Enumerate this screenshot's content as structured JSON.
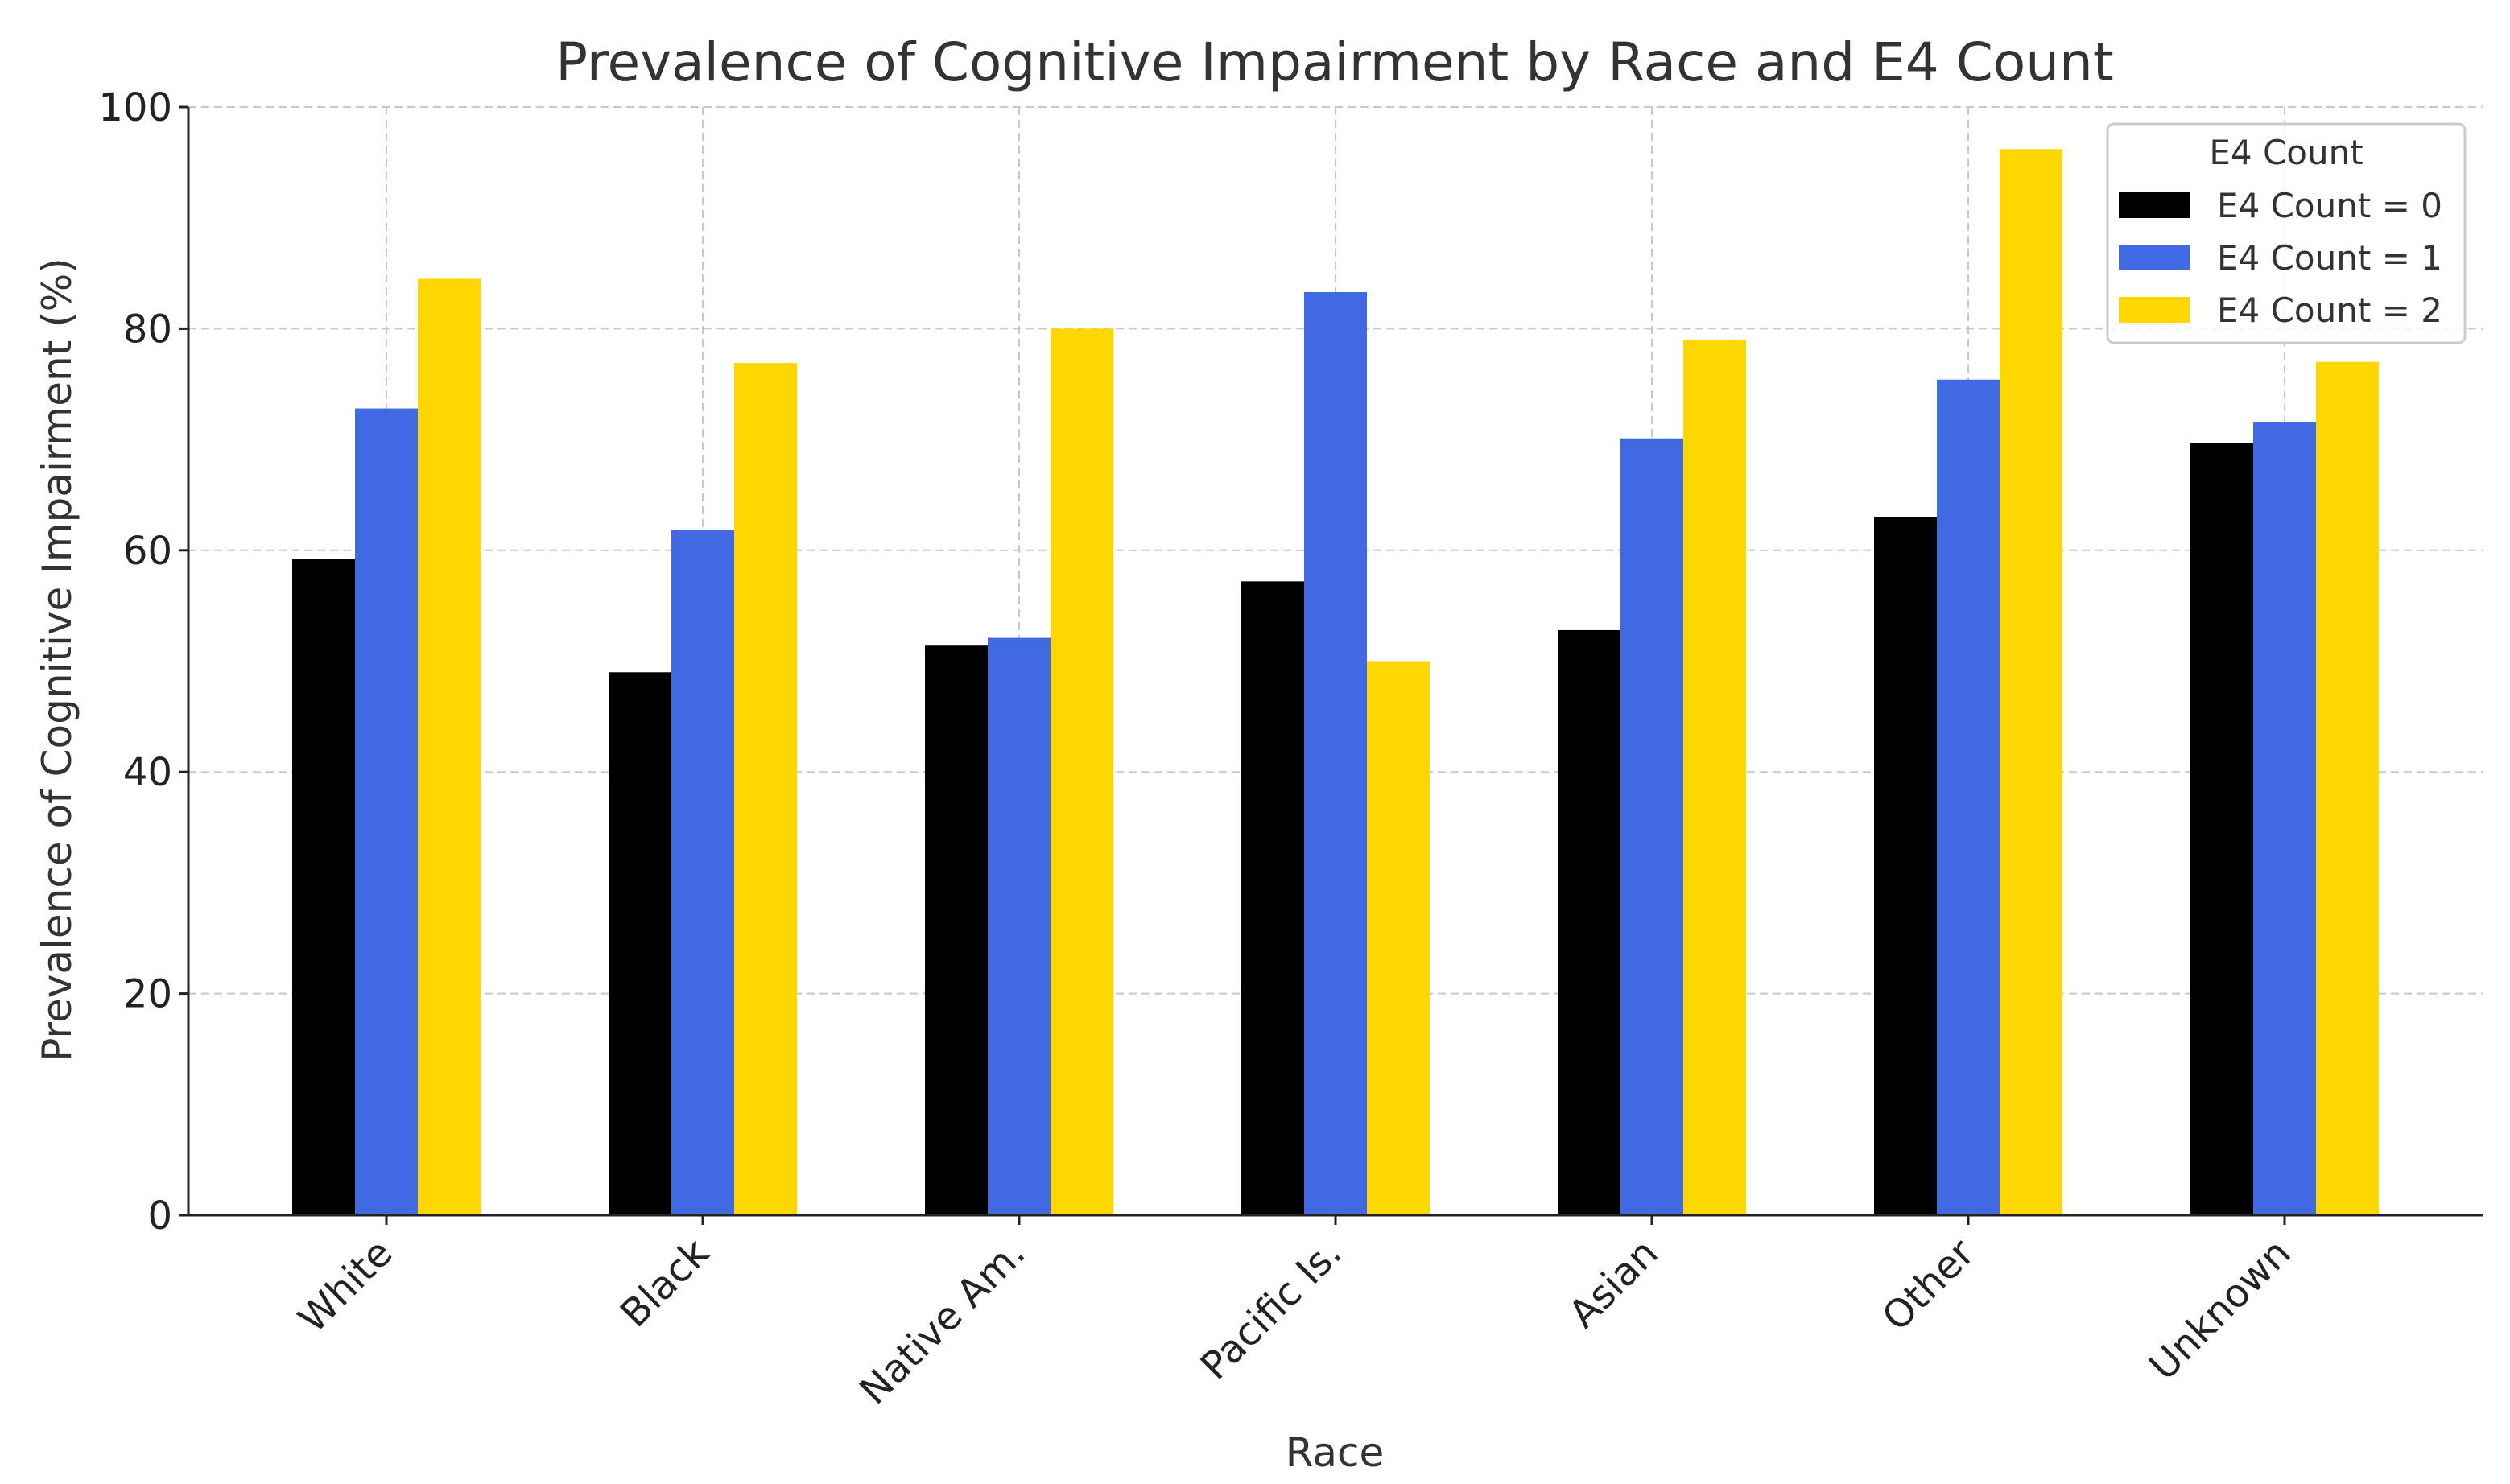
{
  "chart_data": {
    "type": "bar",
    "title": "Prevalence of Cognitive Impairment by Race and E4 Count",
    "xlabel": "Race",
    "ylabel": "Prevalence of Cognitive Impairment (%)",
    "ylim": [
      0,
      100
    ],
    "yticks": [
      0,
      20,
      40,
      60,
      80,
      100
    ],
    "grid": true,
    "legend": {
      "title": "E4 Count",
      "placement": "top-right"
    },
    "categories": [
      "White",
      "Black",
      "Native Am.",
      "Pacific Is.",
      "Asian",
      "Other",
      "Unknown"
    ],
    "series": [
      {
        "name": "E4 Count = 0",
        "color": "#000000",
        "values": [
          59.2,
          49.0,
          51.4,
          57.2,
          52.8,
          63.0,
          69.7
        ]
      },
      {
        "name": "E4 Count = 1",
        "color": "#4169E1",
        "values": [
          72.8,
          61.8,
          52.1,
          83.3,
          70.1,
          75.4,
          71.6
        ]
      },
      {
        "name": "E4 Count = 2",
        "color": "#FFD700",
        "values": [
          84.5,
          76.9,
          80.0,
          50.0,
          79.0,
          96.2,
          77.0
        ]
      }
    ]
  }
}
